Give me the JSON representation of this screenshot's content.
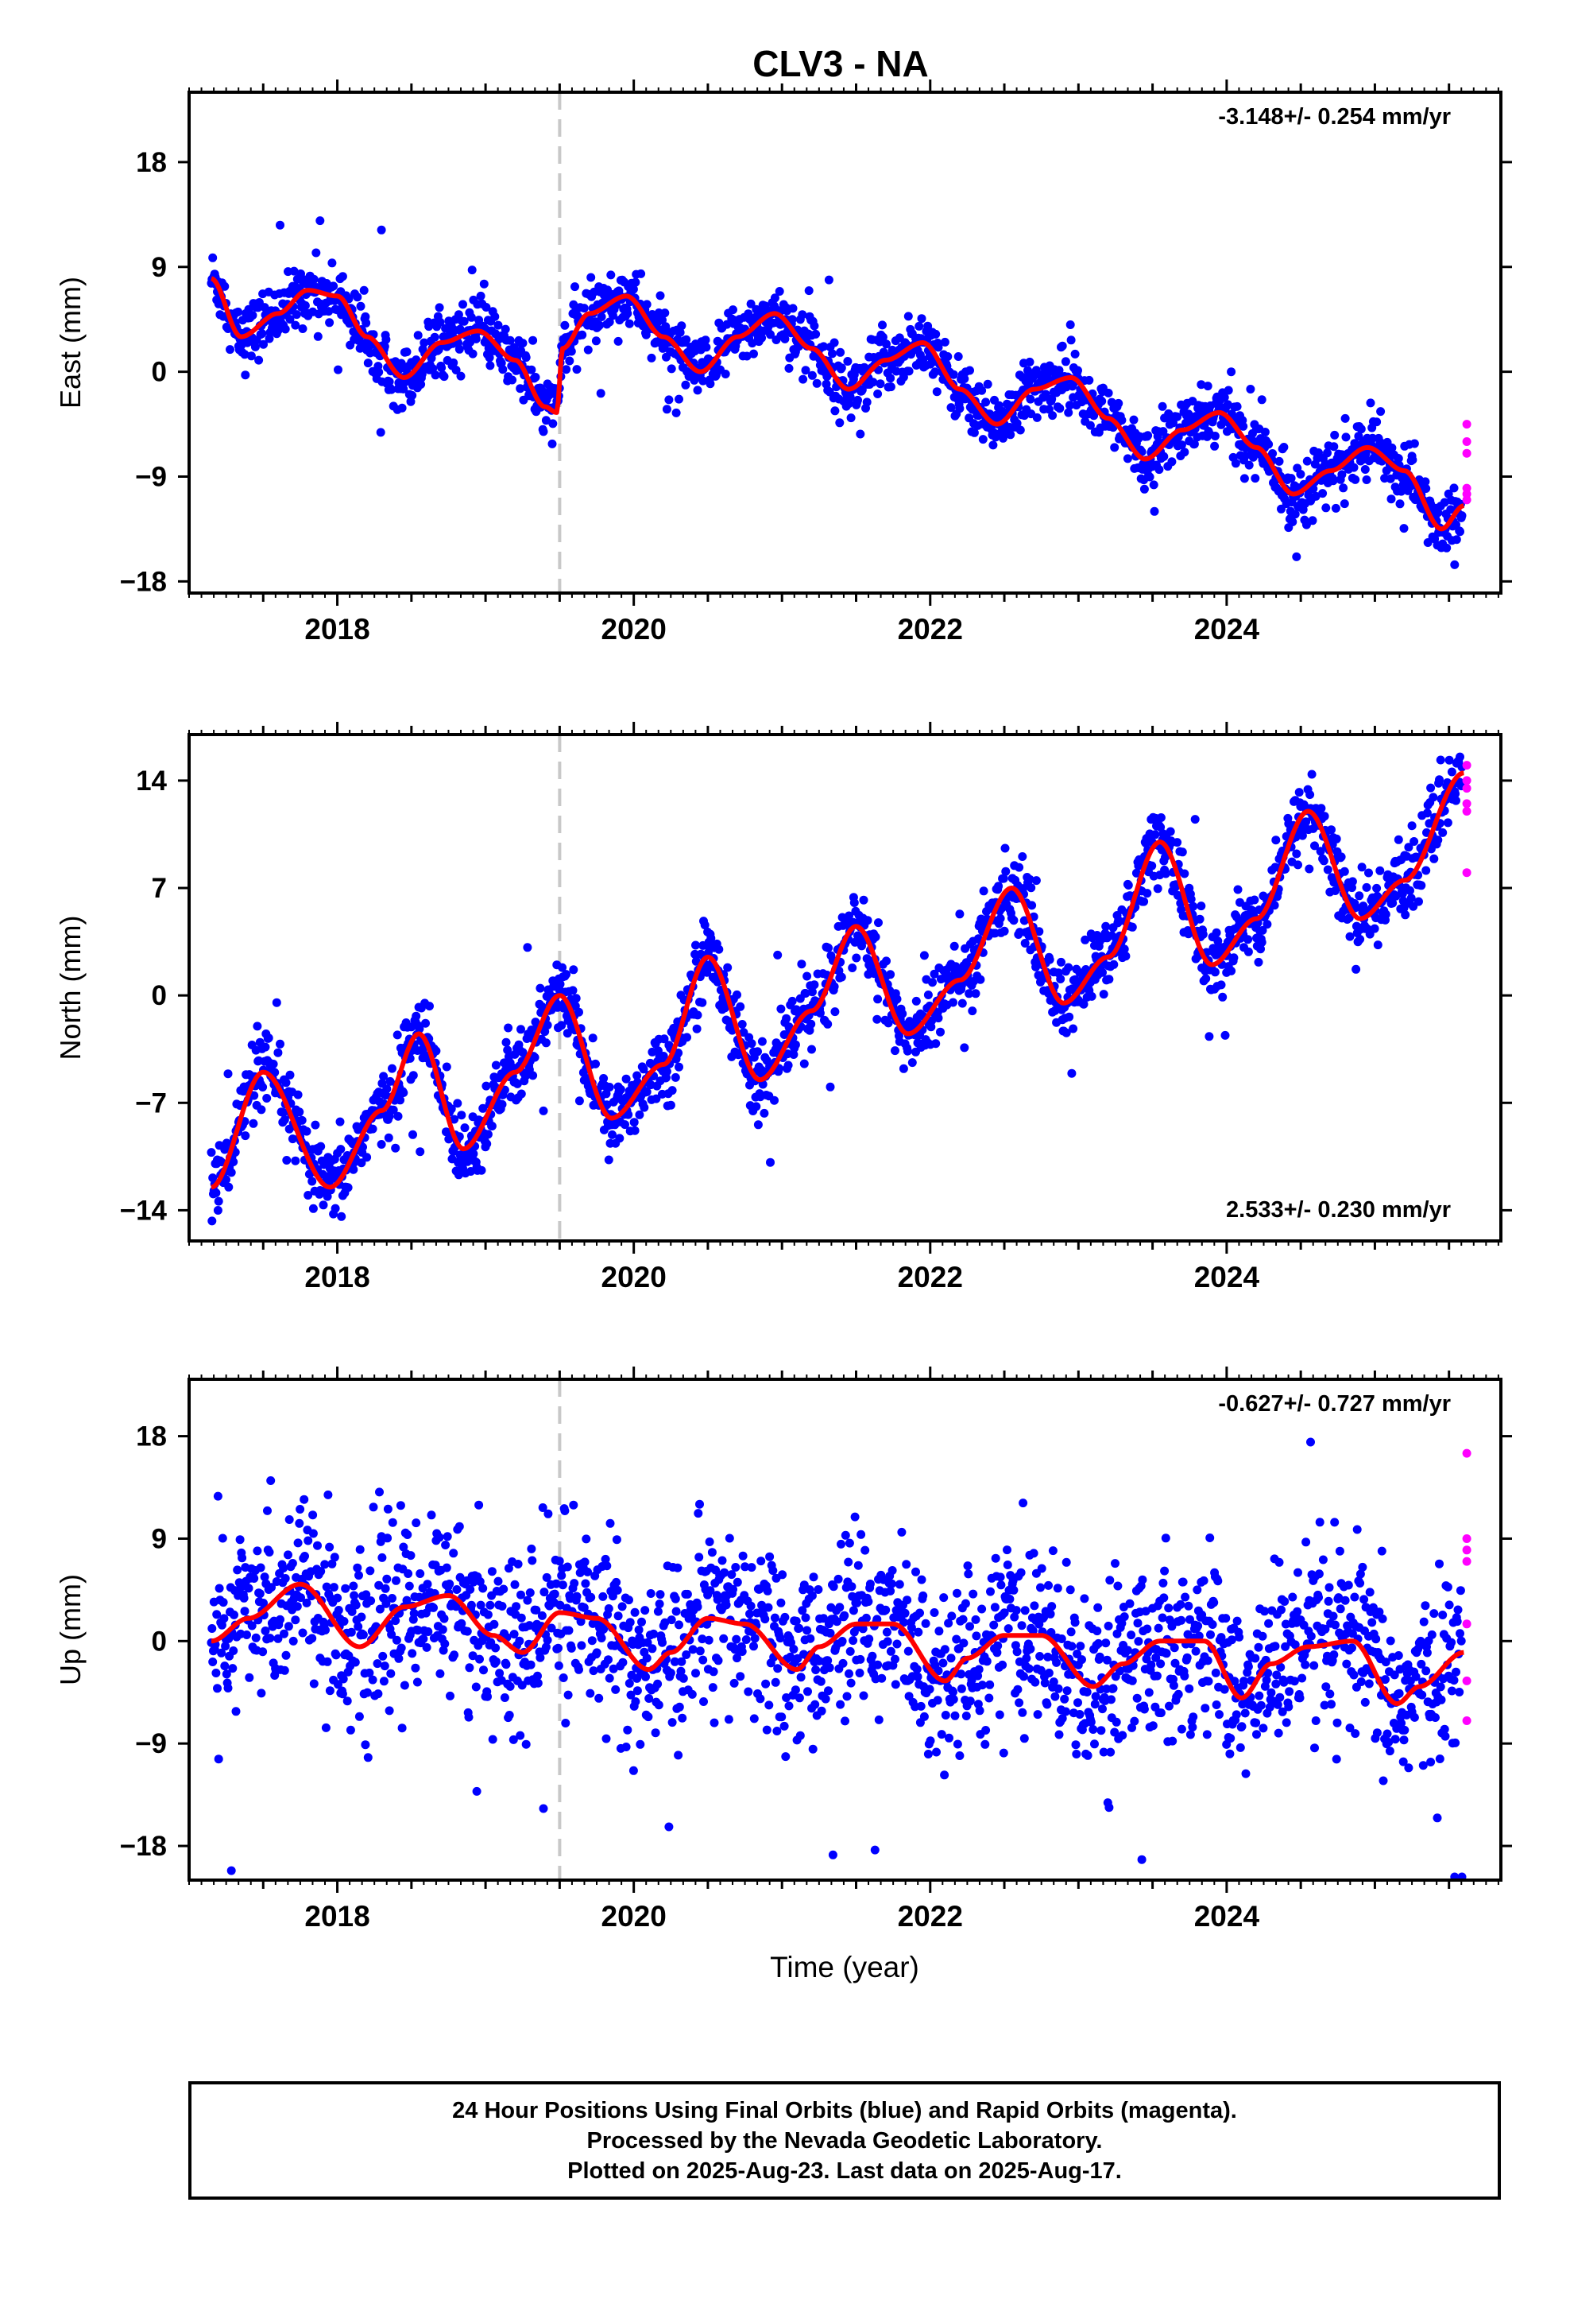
{
  "chart_data": {
    "type": "scatter",
    "title": "CLV3 - NA",
    "xlabel": "Time (year)",
    "xlim": [
      2017.0,
      2025.85
    ],
    "xticks": [
      2018,
      2020,
      2022,
      2024
    ],
    "offset_line_x": 2019.5,
    "colors": {
      "final": "#0000ff",
      "rapid": "#ff00ff",
      "model": "#ff0000",
      "offset_line": "#c8c8c8"
    },
    "panels": [
      {
        "ylabel": "East (mm)",
        "ylim": [
          -19,
          24
        ],
        "yticks": [
          "18",
          "9",
          "0",
          "-9",
          "-18"
        ],
        "ytick_values": [
          18,
          9,
          0,
          -9,
          -18
        ],
        "velocity": "-3.148+/- 0.254 mm/yr",
        "velocity_pos": "top-right",
        "series": [
          {
            "name": "Final Orbits",
            "color": "#0000ff",
            "x": [
              2017.15,
              2017.35,
              2017.6,
              2017.8,
              2018.0,
              2018.2,
              2018.45,
              2018.7,
              2018.95,
              2019.2,
              2019.4,
              2019.48,
              2019.52,
              2019.7,
              2019.95,
              2020.2,
              2020.45,
              2020.7,
              2020.95,
              2021.2,
              2021.45,
              2021.7,
              2021.95,
              2022.2,
              2022.45,
              2022.7,
              2022.95,
              2023.2,
              2023.45,
              2023.7,
              2023.95,
              2024.2,
              2024.45,
              2024.7,
              2024.95,
              2025.2,
              2025.45,
              2025.6
            ],
            "y": [
              8,
              3,
              5,
              7,
              6.5,
              3,
              -0.5,
              2.5,
              3.5,
              1,
              -3,
              -3.5,
              2,
              5,
              6.5,
              3,
              0,
              3,
              5,
              2,
              -1.5,
              1,
              2.5,
              -1.5,
              -4.5,
              -1.5,
              -0.5,
              -4,
              -7.5,
              -5,
              -3.5,
              -6.5,
              -10.5,
              -8.5,
              -6.5,
              -8.5,
              -13.5,
              -11.5
            ]
          },
          {
            "name": "Rapid Orbits",
            "color": "#ff00ff",
            "x": [
              2025.62,
              2025.62,
              2025.62,
              2025.62,
              2025.62,
              2025.62
            ],
            "y": [
              -4.5,
              -6,
              -7,
              -10,
              -10.5,
              -11
            ]
          }
        ],
        "model": {
          "name": "Model",
          "color": "#ff0000",
          "x": [
            2017.15,
            2017.35,
            2017.6,
            2017.8,
            2018.0,
            2018.2,
            2018.45,
            2018.7,
            2018.95,
            2019.2,
            2019.4,
            2019.48,
            2019.52,
            2019.7,
            2019.95,
            2020.2,
            2020.45,
            2020.7,
            2020.95,
            2021.2,
            2021.45,
            2021.7,
            2021.95,
            2022.2,
            2022.45,
            2022.7,
            2022.95,
            2023.2,
            2023.45,
            2023.7,
            2023.95,
            2024.2,
            2024.45,
            2024.7,
            2024.95,
            2025.2,
            2025.45,
            2025.6
          ],
          "y": [
            8,
            3,
            5,
            7,
            6.5,
            3,
            -0.5,
            2.5,
            3.5,
            1,
            -3,
            -3.5,
            2,
            5,
            6.5,
            3,
            0,
            3,
            5,
            2,
            -1.5,
            1,
            2.5,
            -1.5,
            -4.5,
            -1.5,
            -0.5,
            -4,
            -7.5,
            -5,
            -3.5,
            -6.5,
            -10.5,
            -8.5,
            -6.5,
            -8.5,
            -13.5,
            -11.5
          ]
        }
      },
      {
        "ylabel": "North (mm)",
        "ylim": [
          -16,
          17
        ],
        "yticks": [
          "14",
          "7",
          "0",
          "-7",
          "-14"
        ],
        "ytick_values": [
          14,
          7,
          0,
          -7,
          -14
        ],
        "velocity": "2.533+/- 0.230 mm/yr",
        "velocity_pos": "bottom-right",
        "series": [
          {
            "name": "Final Orbits",
            "color": "#0000ff",
            "x": [
              2017.15,
              2017.5,
              2017.95,
              2018.3,
              2018.55,
              2018.85,
              2019.2,
              2019.5,
              2019.85,
              2020.2,
              2020.5,
              2020.85,
              2021.2,
              2021.5,
              2021.85,
              2022.2,
              2022.55,
              2022.9,
              2023.2,
              2023.55,
              2023.9,
              2024.2,
              2024.55,
              2024.9,
              2025.2,
              2025.6
            ],
            "y": [
              -12.5,
              -5,
              -12.5,
              -7.5,
              -2.5,
              -10,
              -5,
              0,
              -8,
              -4.5,
              2.5,
              -5.5,
              -1,
              4.5,
              -2.5,
              1,
              7,
              -0.5,
              2.5,
              10,
              2,
              5,
              12,
              5,
              7.5,
              14.5
            ]
          },
          {
            "name": "Rapid Orbits",
            "color": "#ff00ff",
            "x": [
              2025.62,
              2025.62,
              2025.62,
              2025.62,
              2025.62,
              2025.62
            ],
            "y": [
              15,
              14,
              13.5,
              12.5,
              12,
              8
            ]
          }
        ],
        "model": {
          "name": "Model",
          "color": "#ff0000",
          "x": [
            2017.15,
            2017.5,
            2017.95,
            2018.3,
            2018.55,
            2018.85,
            2019.2,
            2019.5,
            2019.85,
            2020.2,
            2020.5,
            2020.85,
            2021.2,
            2021.5,
            2021.85,
            2022.2,
            2022.55,
            2022.9,
            2023.2,
            2023.55,
            2023.9,
            2024.2,
            2024.55,
            2024.9,
            2025.2,
            2025.6
          ],
          "y": [
            -12.5,
            -5,
            -12.5,
            -7.5,
            -2.5,
            -10,
            -5,
            0,
            -8,
            -4.5,
            2.5,
            -5.5,
            -1,
            4.5,
            -2.5,
            1,
            7,
            -0.5,
            2.5,
            10,
            2,
            5,
            12,
            5,
            7.5,
            14.5
          ]
        }
      },
      {
        "ylabel": "Up (mm)",
        "ylim": [
          -21,
          23
        ],
        "yticks": [
          "18",
          "9",
          "0",
          "-9",
          "-18"
        ],
        "ytick_values": [
          18,
          9,
          0,
          -9,
          -18
        ],
        "velocity": "-0.627+/- 0.727 mm/yr",
        "velocity_pos": "top-right",
        "series": [
          {
            "name": "Final Orbits",
            "color": "#0000ff",
            "x": [
              2017.15,
              2017.4,
              2017.75,
              2018.15,
              2018.45,
              2018.75,
              2019.05,
              2019.25,
              2019.5,
              2019.75,
              2020.1,
              2020.25,
              2020.5,
              2020.75,
              2021.1,
              2021.25,
              2021.5,
              2021.75,
              2022.1,
              2022.25,
              2022.5,
              2022.75,
              2023.1,
              2023.3,
              2023.55,
              2023.85,
              2024.1,
              2024.3,
              2024.55,
              2024.85,
              2025.15,
              2025.3,
              2025.6
            ],
            "y": [
              0,
              2,
              5,
              -0.5,
              3,
              4,
              0.5,
              -1,
              2.5,
              2,
              -2.5,
              -1,
              2,
              1.5,
              -2.5,
              -0.5,
              1.5,
              1.5,
              -3.5,
              -1.5,
              0.5,
              0.5,
              -4,
              -2,
              0,
              0,
              -5,
              -2,
              -0.5,
              0,
              -5.5,
              -4,
              -1
            ]
          },
          {
            "name": "Rapid Orbits",
            "color": "#ff00ff",
            "x": [
              2025.62,
              2025.62,
              2025.62,
              2025.62,
              2025.62,
              2025.62,
              2025.62
            ],
            "y": [
              16.5,
              9,
              8,
              7,
              1.5,
              -3.5,
              -7
            ]
          }
        ],
        "model": {
          "name": "Model",
          "color": "#ff0000",
          "x": [
            2017.15,
            2017.4,
            2017.75,
            2018.15,
            2018.45,
            2018.75,
            2019.05,
            2019.25,
            2019.5,
            2019.75,
            2020.1,
            2020.25,
            2020.5,
            2020.75,
            2021.1,
            2021.25,
            2021.5,
            2021.75,
            2022.1,
            2022.25,
            2022.5,
            2022.75,
            2023.1,
            2023.3,
            2023.55,
            2023.85,
            2024.1,
            2024.3,
            2024.55,
            2024.85,
            2025.15,
            2025.3,
            2025.6
          ],
          "y": [
            0,
            2,
            5,
            -0.5,
            3,
            4,
            0.5,
            -1,
            2.5,
            2,
            -2.5,
            -1,
            2,
            1.5,
            -2.5,
            -0.5,
            1.5,
            1.5,
            -3.5,
            -1.5,
            0.5,
            0.5,
            -4,
            -2,
            0,
            0,
            -5,
            -2,
            -0.5,
            0,
            -5.5,
            -4,
            -1
          ]
        }
      }
    ]
  },
  "footer": {
    "line1": "24 Hour Positions Using Final Orbits (blue) and Rapid Orbits (magenta).",
    "line2": "Processed by the Nevada Geodetic Laboratory.",
    "line3": "Plotted on 2025-Aug-23. Last data on 2025-Aug-17."
  }
}
